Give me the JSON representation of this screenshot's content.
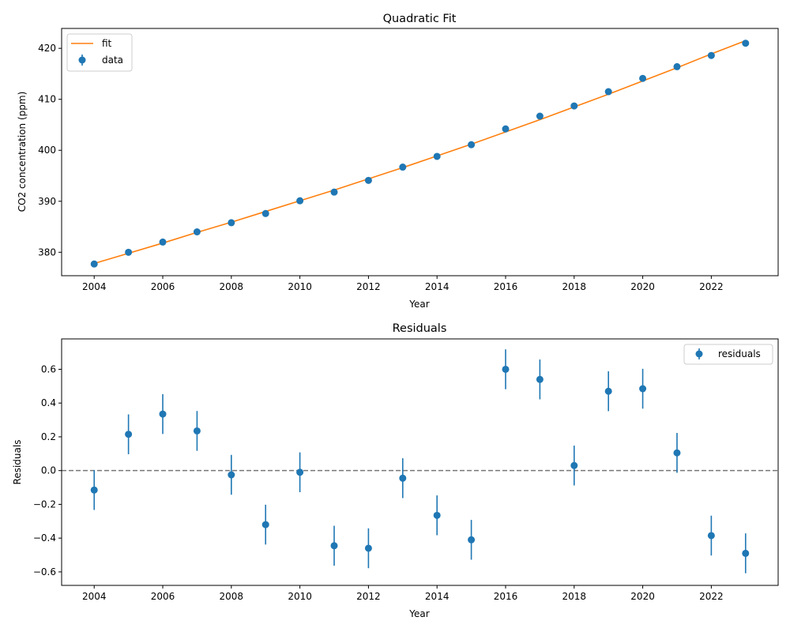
{
  "colors": {
    "data": "#1f77b4",
    "fit": "#ff7f0e",
    "zero_line": "#777777"
  },
  "chart_data": [
    {
      "type": "line",
      "title": "Quadratic Fit",
      "xlabel": "Year",
      "ylabel": "CO2 concentration (ppm)",
      "xlim": [
        2003.05,
        2023.95
      ],
      "ylim": [
        375.4,
        423.9
      ],
      "x_ticks": [
        "2004",
        "2006",
        "2008",
        "2010",
        "2012",
        "2014",
        "2016",
        "2018",
        "2020",
        "2022"
      ],
      "y_ticks": [
        "380",
        "390",
        "400",
        "410",
        "420"
      ],
      "legend_position": "top-left",
      "grid": false,
      "x": [
        2004,
        2005,
        2006,
        2007,
        2008,
        2009,
        2010,
        2011,
        2012,
        2013,
        2014,
        2015,
        2016,
        2017,
        2018,
        2019,
        2020,
        2021,
        2022,
        2023
      ],
      "series": [
        {
          "name": "fit",
          "style": "line",
          "values": [
            377.8,
            379.8,
            381.8,
            383.9,
            385.9,
            388.0,
            390.1,
            392.2,
            394.4,
            396.6,
            398.9,
            401.2,
            403.6,
            406.0,
            408.5,
            411.0,
            413.6,
            416.2,
            418.9,
            421.5
          ]
        },
        {
          "name": "data",
          "style": "errorbar-markers",
          "values": [
            377.7,
            380.0,
            382.0,
            384.0,
            385.8,
            387.6,
            390.1,
            391.8,
            394.1,
            396.7,
            398.8,
            401.1,
            404.2,
            406.7,
            408.7,
            411.5,
            414.1,
            416.4,
            418.6,
            421.0
          ]
        }
      ]
    },
    {
      "type": "scatter",
      "title": "Residuals",
      "xlabel": "Year",
      "ylabel": "Residuals",
      "xlim": [
        2003.05,
        2023.95
      ],
      "ylim": [
        -0.68,
        0.78
      ],
      "x_ticks": [
        "2004",
        "2006",
        "2008",
        "2010",
        "2012",
        "2014",
        "2016",
        "2018",
        "2020",
        "2022"
      ],
      "y_ticks": [
        "−0.6",
        "−0.4",
        "−0.2",
        "0.0",
        "0.2",
        "0.4",
        "0.6"
      ],
      "y_tick_values": [
        -0.6,
        -0.4,
        -0.2,
        0.0,
        0.2,
        0.4,
        0.6
      ],
      "legend_position": "top-right",
      "grid": false,
      "reference_line": {
        "y": 0,
        "style": "dashed"
      },
      "x": [
        2004,
        2005,
        2006,
        2007,
        2008,
        2009,
        2010,
        2011,
        2012,
        2013,
        2014,
        2015,
        2016,
        2017,
        2018,
        2019,
        2020,
        2021,
        2022,
        2023
      ],
      "series": [
        {
          "name": "residuals",
          "style": "errorbar-markers",
          "values": [
            -0.115,
            0.215,
            0.335,
            0.235,
            -0.025,
            -0.32,
            -0.01,
            -0.445,
            -0.46,
            -0.045,
            -0.265,
            -0.41,
            0.6,
            0.54,
            0.03,
            0.47,
            0.485,
            0.105,
            -0.385,
            -0.49
          ],
          "error": 0.118
        }
      ]
    }
  ]
}
